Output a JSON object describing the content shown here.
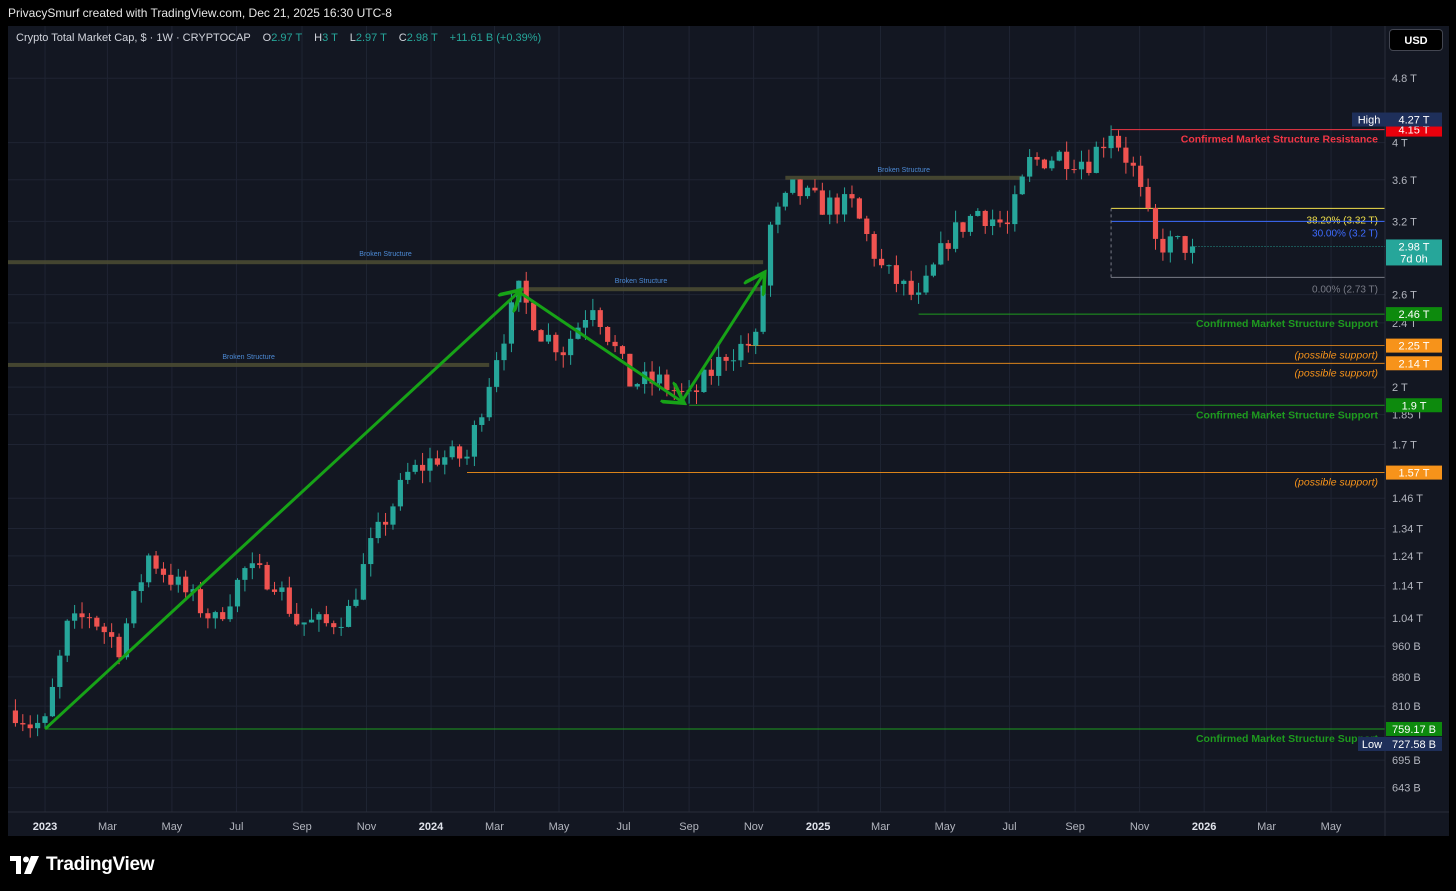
{
  "header": {
    "attribution": "PrivacySmurf created with TradingView.com, Dec 21, 2025 16:30 UTC-8",
    "symbol": "Crypto Total Market Cap, $ · 1W · CRYPTOCAP",
    "ohlc": [
      {
        "label": "O",
        "value": "2.97 T"
      },
      {
        "label": "H",
        "value": "3 T"
      },
      {
        "label": "L",
        "value": "2.97 T"
      },
      {
        "label": "C",
        "value": "2.98 T"
      }
    ],
    "change": "+11.61 B (+0.39%)",
    "currency_button": "USD"
  },
  "brand": {
    "logo_icon": "tradingview-logo-icon",
    "name": "TradingView"
  },
  "colors": {
    "background": "#131722",
    "up": "#26a69a",
    "down": "#ef5350",
    "support": "#1e9b1e",
    "resistance": "#f23645",
    "possible_support": "#f7931a",
    "fib_382": "#f2e14c",
    "fib_30": "#3d6bff",
    "structure": "#4a4a32"
  },
  "chart_data": {
    "type": "candlestick",
    "title": "Crypto Total Market Cap",
    "interval": "1W",
    "y_scale": "log",
    "ylim": [
      600,
      5200
    ],
    "y_unit": "B",
    "x_range": [
      "2022-11-27",
      "2026-06-21"
    ],
    "grid": true,
    "y_ticks": [
      {
        "value": 4800,
        "label": "4.8 T"
      },
      {
        "value": 4000,
        "label": "4 T"
      },
      {
        "value": 3600,
        "label": "3.6 T"
      },
      {
        "value": 3200,
        "label": "3.2 T"
      },
      {
        "value": 2600,
        "label": "2.6 T"
      },
      {
        "value": 2400,
        "label": "2.4 T"
      },
      {
        "value": 2000,
        "label": "2 T"
      },
      {
        "value": 1850,
        "label": "1.85 T"
      },
      {
        "value": 1700,
        "label": "1.7 T"
      },
      {
        "value": 1460,
        "label": "1.46 T"
      },
      {
        "value": 1340,
        "label": "1.34 T"
      },
      {
        "value": 1240,
        "label": "1.24 T"
      },
      {
        "value": 1140,
        "label": "1.14 T"
      },
      {
        "value": 1040,
        "label": "1.04 T"
      },
      {
        "value": 960,
        "label": "960 B"
      },
      {
        "value": 880,
        "label": "880 B"
      },
      {
        "value": 810,
        "label": "810 B"
      },
      {
        "value": 695,
        "label": "695 B"
      },
      {
        "value": 643,
        "label": "643 B"
      }
    ],
    "x_ticks": [
      {
        "date": "2023-01-01",
        "label": "2023",
        "bold": true
      },
      {
        "date": "2023-03-01",
        "label": "Mar"
      },
      {
        "date": "2023-05-01",
        "label": "May"
      },
      {
        "date": "2023-07-01",
        "label": "Jul"
      },
      {
        "date": "2023-09-01",
        "label": "Sep"
      },
      {
        "date": "2023-11-01",
        "label": "Nov"
      },
      {
        "date": "2024-01-01",
        "label": "2024",
        "bold": true
      },
      {
        "date": "2024-03-01",
        "label": "Mar"
      },
      {
        "date": "2024-05-01",
        "label": "May"
      },
      {
        "date": "2024-07-01",
        "label": "Jul"
      },
      {
        "date": "2024-09-01",
        "label": "Sep"
      },
      {
        "date": "2024-11-01",
        "label": "Nov"
      },
      {
        "date": "2025-01-01",
        "label": "2025",
        "bold": true
      },
      {
        "date": "2025-03-01",
        "label": "Mar"
      },
      {
        "date": "2025-05-01",
        "label": "May"
      },
      {
        "date": "2025-07-01",
        "label": "Jul"
      },
      {
        "date": "2025-09-01",
        "label": "Sep"
      },
      {
        "date": "2025-11-01",
        "label": "Nov"
      },
      {
        "date": "2026-01-01",
        "label": "2026",
        "bold": true
      },
      {
        "date": "2026-03-01",
        "label": "Mar"
      },
      {
        "date": "2026-05-01",
        "label": "May"
      }
    ],
    "price_path": [
      [
        "2022-12-04",
        800
      ],
      [
        "2022-12-18",
        770
      ],
      [
        "2023-01-01",
        770
      ],
      [
        "2023-01-22",
        1010
      ],
      [
        "2023-02-12",
        1050
      ],
      [
        "2023-03-12",
        960
      ],
      [
        "2023-04-09",
        1240
      ],
      [
        "2023-05-07",
        1140
      ],
      [
        "2023-06-11",
        1030
      ],
      [
        "2023-07-09",
        1190
      ],
      [
        "2023-08-06",
        1160
      ],
      [
        "2023-08-27",
        1030
      ],
      [
        "2023-09-24",
        1020
      ],
      [
        "2023-10-15",
        1060
      ],
      [
        "2023-11-05",
        1270
      ],
      [
        "2023-12-10",
        1560
      ],
      [
        "2024-01-07",
        1640
      ],
      [
        "2024-02-04",
        1640
      ],
      [
        "2024-03-03",
        2200
      ],
      [
        "2024-03-24",
        2620
      ],
      [
        "2024-04-14",
        2340
      ],
      [
        "2024-05-05",
        2230
      ],
      [
        "2024-06-02",
        2550
      ],
      [
        "2024-07-07",
        2030
      ],
      [
        "2024-08-04",
        2030
      ],
      [
        "2024-09-01",
        1930
      ],
      [
        "2024-10-06",
        2200
      ],
      [
        "2024-11-03",
        2280
      ],
      [
        "2024-11-17",
        3150
      ],
      [
        "2024-12-08",
        3500
      ],
      [
        "2025-01-05",
        3350
      ],
      [
        "2025-02-02",
        3350
      ],
      [
        "2025-03-02",
        2800
      ],
      [
        "2025-04-06",
        2550
      ],
      [
        "2025-05-04",
        3050
      ],
      [
        "2025-06-01",
        3300
      ],
      [
        "2025-06-29",
        3150
      ],
      [
        "2025-07-20",
        3780
      ],
      [
        "2025-08-17",
        3860
      ],
      [
        "2025-09-14",
        3800
      ],
      [
        "2025-10-05",
        4150
      ],
      [
        "2025-10-26",
        3700
      ],
      [
        "2025-11-16",
        3000
      ],
      [
        "2025-12-07",
        3000
      ],
      [
        "2025-12-21",
        2980
      ]
    ],
    "levels": [
      {
        "value": 4150,
        "label": "Confirmed Market Structure Resistance",
        "tag": "4.15 T",
        "kind": "resistance",
        "from": "2025-10-05"
      },
      {
        "value": 3320,
        "label": "38.20% (3.32 T)",
        "kind": "fib_382",
        "from": "2025-10-05"
      },
      {
        "value": 3200,
        "label": "30.00% (3.2 T)",
        "kind": "fib_30",
        "from": "2025-10-05"
      },
      {
        "value": 2730,
        "label": "0.00% (2.73 T)",
        "kind": "fib_0",
        "from": "2025-10-05"
      },
      {
        "value": 2460,
        "label": "Confirmed Market Structure Support",
        "tag": "2.46 T",
        "kind": "support",
        "from": "2025-04-06"
      },
      {
        "value": 2250,
        "label": "(possible support)",
        "tag": "2.25 T",
        "kind": "possible",
        "from": "2024-10-27"
      },
      {
        "value": 2140,
        "label": "(possible support)",
        "tag": "2.14 T",
        "kind": "possible",
        "from": "2024-10-27"
      },
      {
        "value": 1900,
        "label": "Confirmed Market Structure Support",
        "tag": "1.9 T",
        "kind": "support",
        "from": "2024-09-01"
      },
      {
        "value": 1570,
        "label": "(possible support)",
        "tag": "1.57 T",
        "kind": "possible",
        "from": "2024-02-04"
      },
      {
        "value": 759.17,
        "label": "Confirmed Market Structure Support",
        "tag": "759.17 B",
        "kind": "support",
        "from": "2023-01-01"
      }
    ],
    "broken_structure": [
      {
        "label": "Broken Structure",
        "value": 2850,
        "from": "2022-11-27",
        "to": "2024-11-10"
      },
      {
        "label": "Broken Structure",
        "value": 2640,
        "from": "2024-03-24",
        "to": "2024-11-10"
      },
      {
        "label": "Broken Structure",
        "value": 2130,
        "from": "2022-11-27",
        "to": "2024-02-25"
      },
      {
        "label": "Broken Structure",
        "value": 3620,
        "from": "2024-12-01",
        "to": "2025-07-13"
      }
    ],
    "trend_arrows": [
      {
        "from": [
          "2023-01-01",
          759
        ],
        "to": [
          "2024-03-24",
          2620
        ]
      },
      {
        "from": [
          "2024-03-24",
          2620
        ],
        "to": [
          "2024-08-25",
          1920
        ]
      },
      {
        "from": [
          "2024-08-25",
          1920
        ],
        "to": [
          "2024-11-10",
          2750
        ]
      }
    ],
    "price_tags": [
      {
        "label": "High",
        "value_label": "4.27 T",
        "value": 4270
      },
      {
        "label": "",
        "value_label": "2.98 T",
        "value": 2980,
        "sub": "7d 0h"
      },
      {
        "label": "Low",
        "value_label": "727.58 B",
        "value": 727.58
      }
    ]
  }
}
